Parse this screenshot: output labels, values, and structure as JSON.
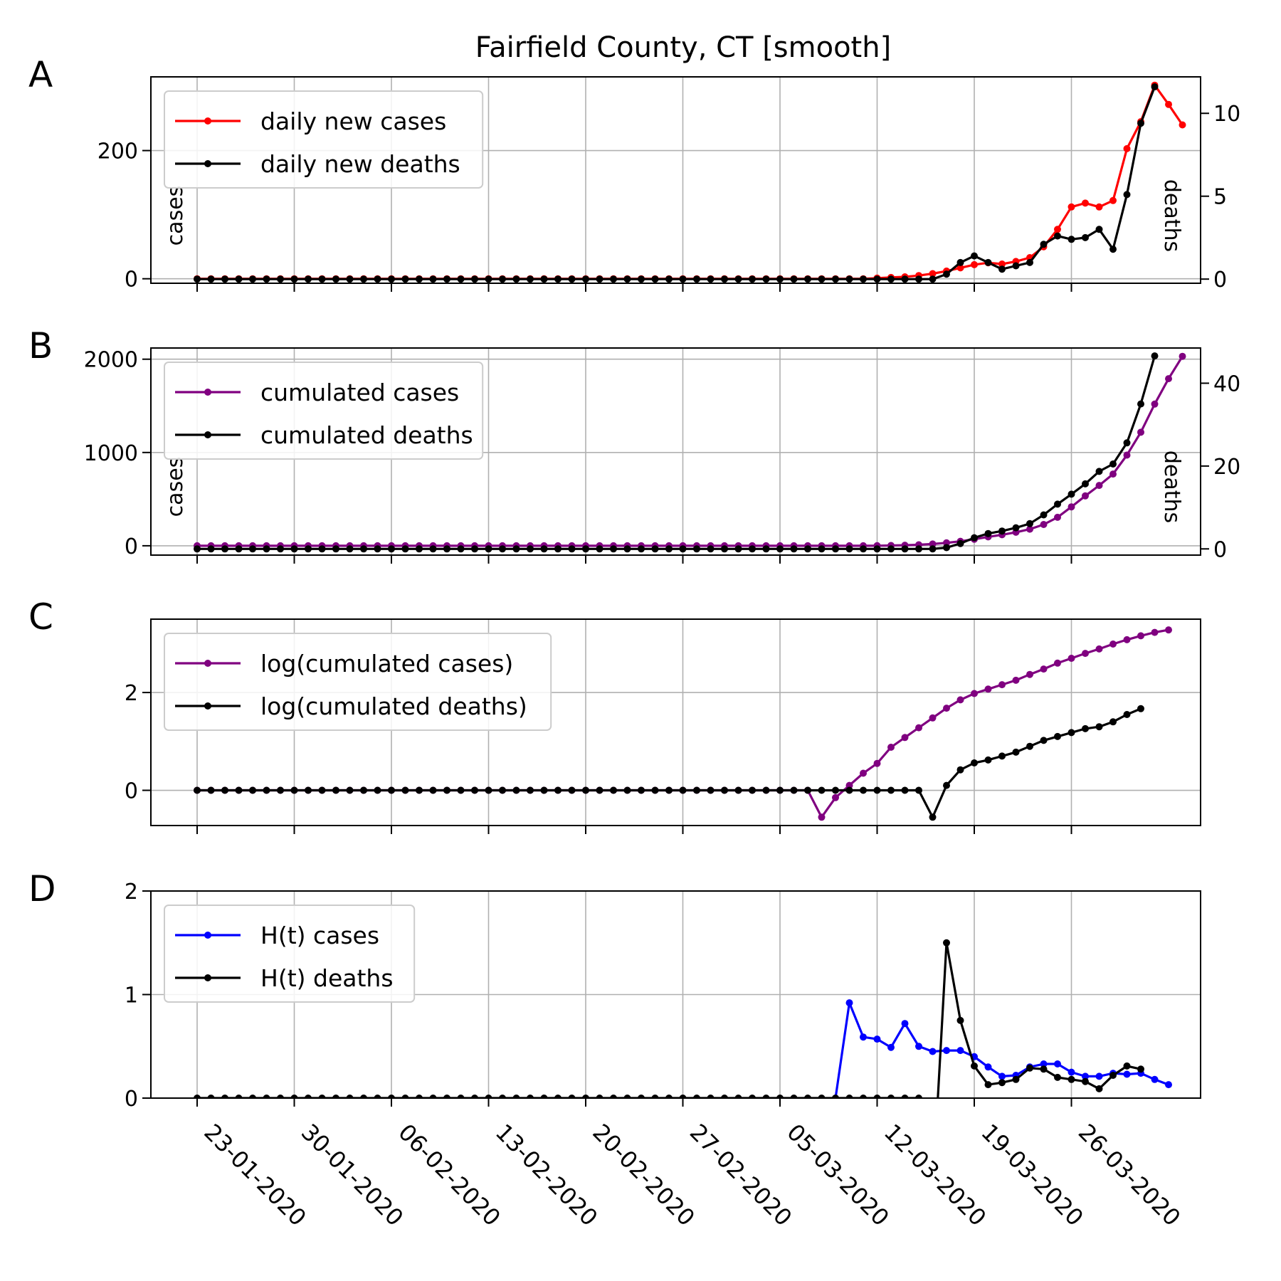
{
  "title": "Fairfield County, CT [smooth]",
  "dates": [
    "23-01-2020",
    "30-01-2020",
    "06-02-2020",
    "13-02-2020",
    "20-02-2020",
    "27-02-2020",
    "05-03-2020",
    "12-03-2020",
    "19-03-2020",
    "26-03-2020"
  ],
  "chart_data": [
    {
      "panel": "A",
      "type": "line",
      "x_start": "22-01-2020",
      "ylim": [
        -7,
        315
      ],
      "y2lim": [
        -0.25,
        12.2
      ],
      "yticks": [
        "0",
        "200"
      ],
      "y2ticks": [
        "0",
        "5",
        "10"
      ],
      "ylabel": "cases",
      "y2label": "deaths",
      "grid": true,
      "legend_position": "top-left",
      "series": [
        {
          "name": "daily new cases",
          "color": "#ff0000",
          "axis": "left",
          "values": [
            0,
            0,
            0,
            0,
            0,
            0,
            0,
            0,
            0,
            0,
            0,
            0,
            0,
            0,
            0,
            0,
            0,
            0,
            0,
            0,
            0,
            0,
            0,
            0,
            0,
            0,
            0,
            0,
            0,
            0,
            0,
            0,
            0,
            0,
            0,
            0,
            0,
            0,
            0,
            0,
            0,
            0,
            0,
            0,
            0,
            0,
            0,
            0,
            0,
            1,
            2,
            3,
            5,
            8,
            12,
            17,
            22,
            25,
            23,
            27,
            33,
            50,
            77,
            112,
            118,
            112,
            122,
            203,
            245,
            302,
            272,
            240
          ]
        },
        {
          "name": "daily new deaths",
          "color": "#000000",
          "axis": "right",
          "values": [
            0,
            0,
            0,
            0,
            0,
            0,
            0,
            0,
            0,
            0,
            0,
            0,
            0,
            0,
            0,
            0,
            0,
            0,
            0,
            0,
            0,
            0,
            0,
            0,
            0,
            0,
            0,
            0,
            0,
            0,
            0,
            0,
            0,
            0,
            0,
            0,
            0,
            0,
            0,
            0,
            0,
            0,
            0,
            0,
            0,
            0,
            0,
            0,
            0,
            0,
            0,
            0,
            0,
            0,
            0.3,
            1,
            1.4,
            1,
            0.6,
            0.8,
            1,
            2.1,
            2.6,
            2.4,
            2.5,
            3,
            1.8,
            5.1,
            9.4,
            11.6
          ]
        }
      ]
    },
    {
      "panel": "B",
      "type": "line",
      "x_start": "22-01-2020",
      "ylim": [
        -100,
        2120
      ],
      "y2lim": [
        -1.5,
        48.5
      ],
      "yticks": [
        "0",
        "1000",
        "2000"
      ],
      "y2ticks": [
        "0",
        "20",
        "40"
      ],
      "ylabel": "cases",
      "y2label": "deaths",
      "grid": true,
      "legend_position": "top-left",
      "series": [
        {
          "name": "cumulated cases",
          "color": "#800080",
          "axis": "left",
          "values": [
            0,
            0,
            0,
            0,
            0,
            0,
            0,
            0,
            0,
            0,
            0,
            0,
            0,
            0,
            0,
            0,
            0,
            0,
            0,
            0,
            0,
            0,
            0,
            0,
            0,
            0,
            0,
            0,
            0,
            0,
            0,
            0,
            0,
            0,
            0,
            0,
            0,
            0,
            0,
            0,
            0,
            0,
            0,
            0,
            0,
            0,
            0,
            0,
            0,
            1,
            3,
            6,
            11,
            19,
            31,
            48,
            70,
            95,
            118,
            145,
            178,
            228,
            305,
            417,
            535,
            647,
            769,
            972,
            1217,
            1519,
            1791,
            2031
          ]
        },
        {
          "name": "cumulated deaths",
          "color": "#000000",
          "axis": "right",
          "values": [
            0,
            0,
            0,
            0,
            0,
            0,
            0,
            0,
            0,
            0,
            0,
            0,
            0,
            0,
            0,
            0,
            0,
            0,
            0,
            0,
            0,
            0,
            0,
            0,
            0,
            0,
            0,
            0,
            0,
            0,
            0,
            0,
            0,
            0,
            0,
            0,
            0,
            0,
            0,
            0,
            0,
            0,
            0,
            0,
            0,
            0,
            0,
            0,
            0,
            0,
            0,
            0,
            0,
            0,
            0.3,
            1.3,
            2.7,
            3.7,
            4.3,
            5.1,
            6.1,
            8.2,
            10.8,
            13.2,
            15.7,
            18.7,
            20.5,
            25.6,
            35.0,
            46.6
          ]
        }
      ]
    },
    {
      "panel": "C",
      "type": "line",
      "x_start": "22-01-2020",
      "ylim": [
        -0.72,
        3.5
      ],
      "yticks": [
        "0",
        "2"
      ],
      "grid": true,
      "legend_position": "top-left",
      "series": [
        {
          "name": "log(cumulated cases)",
          "color": "#800080",
          "values": [
            0,
            0,
            0,
            0,
            0,
            0,
            0,
            0,
            0,
            0,
            0,
            0,
            0,
            0,
            0,
            0,
            0,
            0,
            0,
            0,
            0,
            0,
            0,
            0,
            0,
            0,
            0,
            0,
            0,
            0,
            0,
            0,
            0,
            0,
            0,
            0,
            0,
            0,
            0,
            0,
            0,
            0,
            0,
            0,
            0,
            -0.55,
            -0.15,
            0.1,
            0.35,
            0.55,
            0.88,
            1.08,
            1.28,
            1.48,
            1.68,
            1.85,
            1.98,
            2.07,
            2.16,
            2.25,
            2.37,
            2.48,
            2.6,
            2.7,
            2.8,
            2.89,
            2.99,
            3.08,
            3.16,
            3.23,
            3.28
          ]
        },
        {
          "name": "log(cumulated deaths)",
          "color": "#000000",
          "values": [
            0,
            0,
            0,
            0,
            0,
            0,
            0,
            0,
            0,
            0,
            0,
            0,
            0,
            0,
            0,
            0,
            0,
            0,
            0,
            0,
            0,
            0,
            0,
            0,
            0,
            0,
            0,
            0,
            0,
            0,
            0,
            0,
            0,
            0,
            0,
            0,
            0,
            0,
            0,
            0,
            0,
            0,
            0,
            0,
            0,
            0,
            0,
            0,
            0,
            0,
            0,
            0,
            0,
            -0.55,
            0.1,
            0.42,
            0.56,
            0.62,
            0.7,
            0.78,
            0.9,
            1.02,
            1.1,
            1.18,
            1.26,
            1.3,
            1.4,
            1.55,
            1.67
          ]
        }
      ]
    },
    {
      "panel": "D",
      "type": "line",
      "x_start": "22-01-2020",
      "ylim": [
        0,
        2
      ],
      "yticks": [
        "0",
        "1",
        "2"
      ],
      "grid": true,
      "legend_position": "top-left",
      "series": [
        {
          "name": "H(t) cases",
          "color": "#0000ff",
          "values": [
            null,
            null,
            null,
            null,
            null,
            null,
            null,
            null,
            null,
            null,
            null,
            null,
            null,
            null,
            null,
            null,
            null,
            null,
            null,
            null,
            null,
            null,
            null,
            null,
            null,
            null,
            null,
            null,
            null,
            null,
            null,
            null,
            null,
            null,
            null,
            null,
            null,
            null,
            null,
            null,
            null,
            null,
            null,
            null,
            null,
            null,
            0,
            0.92,
            0.59,
            0.57,
            0.49,
            0.72,
            0.5,
            0.45,
            0.46,
            0.46,
            0.4,
            0.3,
            0.21,
            0.22,
            0.3,
            0.33,
            0.33,
            0.25,
            0.21,
            0.21,
            0.24,
            0.23,
            0.24,
            0.18,
            0.13
          ]
        },
        {
          "name": "H(t) deaths",
          "color": "#000000",
          "values": [
            0,
            0,
            0,
            0,
            0,
            0,
            0,
            0,
            0,
            0,
            0,
            0,
            0,
            0,
            0,
            0,
            0,
            0,
            0,
            0,
            0,
            0,
            0,
            0,
            0,
            0,
            0,
            0,
            0,
            0,
            0,
            0,
            0,
            0,
            0,
            0,
            0,
            0,
            0,
            0,
            0,
            0,
            0,
            0,
            0,
            0,
            0,
            0,
            0,
            0,
            0,
            0,
            0,
            -0.9,
            1.5,
            0.75,
            0.31,
            0.13,
            0.15,
            0.18,
            0.29,
            0.28,
            0.2,
            0.18,
            0.16,
            0.09,
            0.22,
            0.31,
            0.28
          ]
        }
      ]
    }
  ]
}
